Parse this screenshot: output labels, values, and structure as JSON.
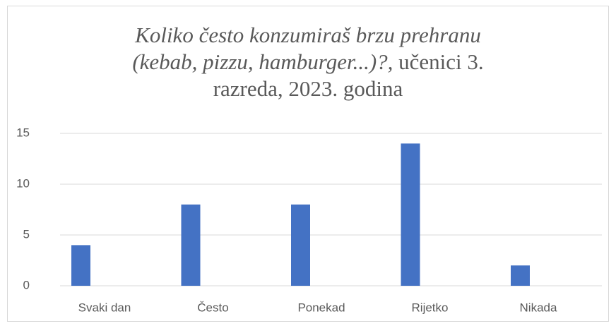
{
  "chart_data": {
    "type": "bar",
    "title": [
      {
        "text": "Koliko često konzumiraš brzu prehranu",
        "italic": true
      },
      {
        "text": "(kebab, pizzu, hamburger...)?,",
        "italic": true
      },
      {
        "text": " učenici 3.",
        "italic": false
      },
      {
        "text": "razreda, 2023. godina",
        "italic": false
      }
    ],
    "categories": [
      "Svaki dan",
      "Često",
      "Ponekad",
      "Rijetko",
      "Nikada"
    ],
    "values": [
      4,
      8,
      8,
      14,
      2
    ],
    "color": "#4472c4",
    "ylim": [
      0,
      15
    ],
    "yticks": [
      0,
      5,
      10,
      15
    ],
    "grid": true
  }
}
